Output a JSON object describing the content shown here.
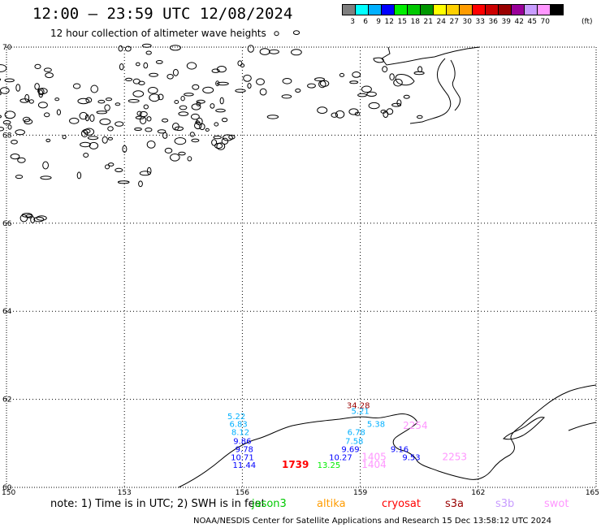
{
  "header": {
    "title": "12:00 – 23:59 UTC 12/08/2024",
    "subtitle": "12 hour collection of altimeter wave heights"
  },
  "colorbar": {
    "colors": [
      "#7f7f7f",
      "#00ffff",
      "#00b0ff",
      "#0000ff",
      "#00ee00",
      "#00c800",
      "#009600",
      "#ffff00",
      "#ffd000",
      "#ff9c00",
      "#ff0000",
      "#cc0000",
      "#990000",
      "#990099",
      "#c89cff",
      "#ff96ff",
      "#000000"
    ],
    "labels": [
      "3",
      "6",
      "9",
      "12",
      "15",
      "18",
      "21",
      "24",
      "27",
      "30",
      "33",
      "36",
      "39",
      "42",
      "45",
      "70"
    ],
    "unit": "(ft)"
  },
  "map": {
    "lat_labels": [
      "70",
      "68",
      "66",
      "64",
      "62",
      "60"
    ],
    "lon_labels": [
      "150",
      "153",
      "156",
      "159",
      "162",
      "165"
    ]
  },
  "observations": [
    {
      "text": "34.28",
      "lon": 158.95,
      "lat": 61.8,
      "color": "#990000"
    },
    {
      "text": "5.21",
      "lon": 159.0,
      "lat": 61.67,
      "color": "#00b0ff"
    },
    {
      "text": "5.22",
      "lon": 155.85,
      "lat": 61.55,
      "color": "#00b0ff"
    },
    {
      "text": "6.83",
      "lon": 155.9,
      "lat": 61.37,
      "color": "#00b0ff"
    },
    {
      "text": "5.38",
      "lon": 159.4,
      "lat": 61.37,
      "color": "#00b0ff"
    },
    {
      "text": "2254",
      "lon": 160.4,
      "lat": 61.33,
      "color": "#ff96ff"
    },
    {
      "text": "8.12",
      "lon": 155.95,
      "lat": 61.19,
      "color": "#00b0ff"
    },
    {
      "text": "6.78",
      "lon": 158.9,
      "lat": 61.19,
      "color": "#00b0ff"
    },
    {
      "text": "9.86",
      "lon": 156.0,
      "lat": 60.99,
      "color": "#0000ff"
    },
    {
      "text": "7.58",
      "lon": 158.85,
      "lat": 60.99,
      "color": "#00b0ff"
    },
    {
      "text": "9.78",
      "lon": 156.05,
      "lat": 60.8,
      "color": "#0000ff"
    },
    {
      "text": "9.69",
      "lon": 158.75,
      "lat": 60.8,
      "color": "#0000ff"
    },
    {
      "text": "9.16",
      "lon": 160.0,
      "lat": 60.8,
      "color": "#0000ff"
    },
    {
      "text": "10.71",
      "lon": 156.0,
      "lat": 60.62,
      "color": "#0000ff"
    },
    {
      "text": "10.27",
      "lon": 158.5,
      "lat": 60.62,
      "color": "#0000ff"
    },
    {
      "text": "1405",
      "lon": 159.35,
      "lat": 60.62,
      "color": "#ff96ff"
    },
    {
      "text": "9.53",
      "lon": 160.3,
      "lat": 60.62,
      "color": "#0000ff"
    },
    {
      "text": "2253",
      "lon": 161.4,
      "lat": 60.62,
      "color": "#ff96ff"
    },
    {
      "text": "11.44",
      "lon": 156.05,
      "lat": 60.44,
      "color": "#0000ff"
    },
    {
      "text": "1739",
      "lon": 157.35,
      "lat": 60.44,
      "color": "#ff0000"
    },
    {
      "text": "13.25",
      "lon": 158.2,
      "lat": 60.44,
      "color": "#00ee00"
    },
    {
      "text": "1404",
      "lon": 159.35,
      "lat": 60.44,
      "color": "#ff96ff"
    }
  ],
  "legend": {
    "note": "note:  1) Time is in UTC;  2) SWH is in feet",
    "satellites": [
      {
        "name": "jason3",
        "color": "#00c800"
      },
      {
        "name": "altika",
        "color": "#ff9c00"
      },
      {
        "name": "cryosat",
        "color": "#ff0000"
      },
      {
        "name": "s3a",
        "color": "#990000"
      },
      {
        "name": "s3b",
        "color": "#c89cff"
      },
      {
        "name": "swot",
        "color": "#ff96ff"
      }
    ]
  },
  "footer": {
    "text": "NOAA/NESDIS Center for Satellite Applications and Research    15 Dec 13:58:12 UTC 2024"
  }
}
